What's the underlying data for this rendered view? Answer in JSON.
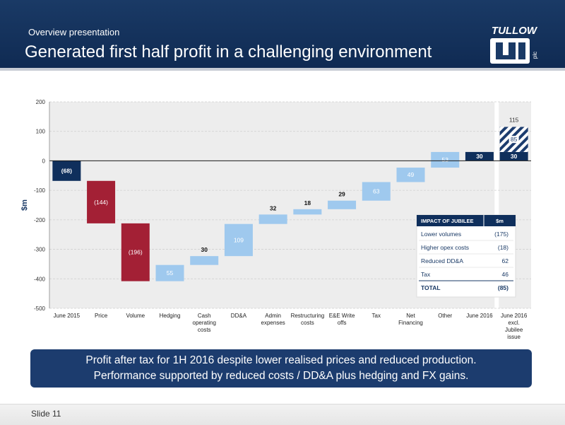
{
  "header": {
    "subtitle": "Overview presentation",
    "title": "Generated first half profit in a challenging environment",
    "logo_text": "TULLOW",
    "logo_small": "plc"
  },
  "chart_data": {
    "type": "bar",
    "subtype": "waterfall",
    "ylabel": "$m",
    "ylim": [
      -500,
      200
    ],
    "yticks": [
      {
        "value": 200,
        "label": "200"
      },
      {
        "value": 100,
        "label": "100"
      },
      {
        "value": 0,
        "label": "0"
      },
      {
        "value": -100,
        "label": "-100"
      },
      {
        "value": -200,
        "label": "-200"
      },
      {
        "value": -300,
        "label": "-300"
      },
      {
        "value": -400,
        "label": "-400"
      },
      {
        "value": -500,
        "label": "-500"
      }
    ],
    "grid": true,
    "bars": [
      {
        "category": "June 2015",
        "from": 0,
        "to": -68,
        "label": "(68)",
        "kind": "total"
      },
      {
        "category": "Price",
        "from": -68,
        "to": -212,
        "label": "(144)",
        "kind": "decrease"
      },
      {
        "category": "Volume",
        "from": -212,
        "to": -408,
        "label": "(196)",
        "kind": "decrease"
      },
      {
        "category": "Hedging",
        "from": -408,
        "to": -353,
        "label": "55",
        "kind": "increase"
      },
      {
        "category": "Cash operating costs",
        "from": -353,
        "to": -323,
        "label": "30",
        "kind": "increase"
      },
      {
        "category": "DD&A",
        "from": -323,
        "to": -214,
        "label": "109",
        "kind": "increase"
      },
      {
        "category": "Admin expenses",
        "from": -214,
        "to": -182,
        "label": "32",
        "kind": "increase"
      },
      {
        "category": "Restructuring costs",
        "from": -182,
        "to": -164,
        "label": "18",
        "kind": "increase"
      },
      {
        "category": "E&E Write offs",
        "from": -164,
        "to": -135,
        "label": "29",
        "kind": "increase"
      },
      {
        "category": "Tax",
        "from": -135,
        "to": -72,
        "label": "63",
        "kind": "increase"
      },
      {
        "category": "Net Financing",
        "from": -72,
        "to": -23,
        "label": "49",
        "kind": "increase"
      },
      {
        "category": "Other",
        "from": -23,
        "to": 30,
        "label": "53",
        "kind": "increase"
      },
      {
        "category": "June 2016",
        "from": 0,
        "to": 30,
        "label": "30",
        "kind": "total"
      },
      {
        "category": "June 2016 excl. Jubilee issue",
        "from": 0,
        "to": 30,
        "label": "30",
        "kind": "total"
      },
      {
        "category": "June 2016 excl. Jubilee issue",
        "from": 30,
        "to": 115,
        "label": "85",
        "kind": "hatched"
      }
    ],
    "annotations": [
      {
        "category": "June 2016 excl. Jubilee issue",
        "value": 115,
        "label": "115"
      }
    ],
    "colors": {
      "total": "#0f2f5c",
      "decrease": "#a32035",
      "increase": "#9fc9ee",
      "hatched": "#1c3c6e",
      "plot_bg": "#ededed",
      "grid": "#cfcfcf"
    },
    "table": {
      "headers": [
        "IMPACT OF JUBILEE",
        "$m"
      ],
      "rows": [
        [
          "Lower volumes",
          "(175)"
        ],
        [
          "Higher opex costs",
          "(18)"
        ],
        [
          "Reduced DD&A",
          "62"
        ],
        [
          "Tax",
          "46"
        ]
      ],
      "total": [
        "TOTAL",
        "(85)"
      ]
    }
  },
  "callout": {
    "line1": "Profit after tax for 1H 2016 despite lower realised prices and reduced production.",
    "line2": "Performance supported by reduced costs / DD&A plus hedging and FX gains."
  },
  "footer": {
    "slide_label": "Slide 11"
  }
}
